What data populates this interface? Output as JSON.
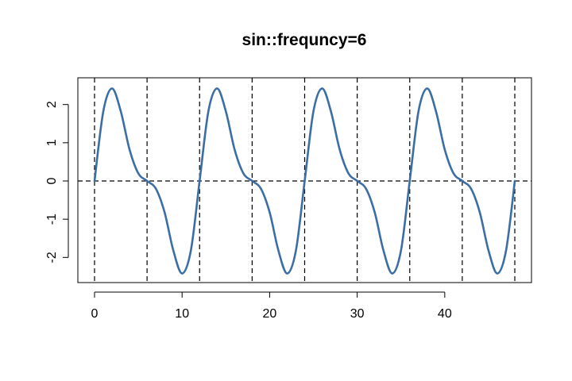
{
  "chart_data": {
    "type": "line",
    "title": "sin::frequncy=6",
    "xlabel": "",
    "ylabel": "",
    "xlim": [
      0,
      48
    ],
    "ylim": [
      -2.45,
      2.45
    ],
    "x_ticks": [
      0,
      10,
      20,
      30,
      40
    ],
    "y_ticks": [
      -2,
      -1,
      0,
      1,
      2
    ],
    "grid": false,
    "reference_lines": {
      "horizontal_y": 0,
      "vertical_x": [
        0,
        6,
        12,
        18,
        24,
        30,
        36,
        42,
        48
      ],
      "style": "dashed",
      "color": "#000000"
    },
    "series": [
      {
        "color": "#3a6ea5",
        "x": [
          0,
          1,
          2,
          3,
          4,
          5,
          6,
          7,
          8,
          9,
          10,
          11,
          12,
          13,
          14,
          15,
          16,
          17,
          18,
          19,
          20,
          21,
          22,
          23,
          24,
          25,
          26,
          27,
          28,
          29,
          30,
          31,
          32,
          33,
          34,
          35,
          36,
          37,
          38,
          39,
          40,
          41,
          42,
          43,
          44,
          45,
          46,
          47,
          48
        ],
        "values": [
          0,
          1.82,
          2.42,
          1.82,
          0.82,
          0.2,
          0,
          -0.2,
          -0.82,
          -1.82,
          -2.42,
          -1.82,
          0,
          1.82,
          2.42,
          1.82,
          0.82,
          0.2,
          0,
          -0.2,
          -0.82,
          -1.82,
          -2.42,
          -1.82,
          0,
          1.82,
          2.42,
          1.82,
          0.82,
          0.2,
          0,
          -0.2,
          -0.82,
          -1.82,
          -2.42,
          -1.82,
          0,
          1.82,
          2.42,
          1.82,
          0.82,
          0.2,
          0,
          -0.2,
          -0.82,
          -1.82,
          -2.42,
          -1.82,
          0
        ]
      }
    ]
  }
}
